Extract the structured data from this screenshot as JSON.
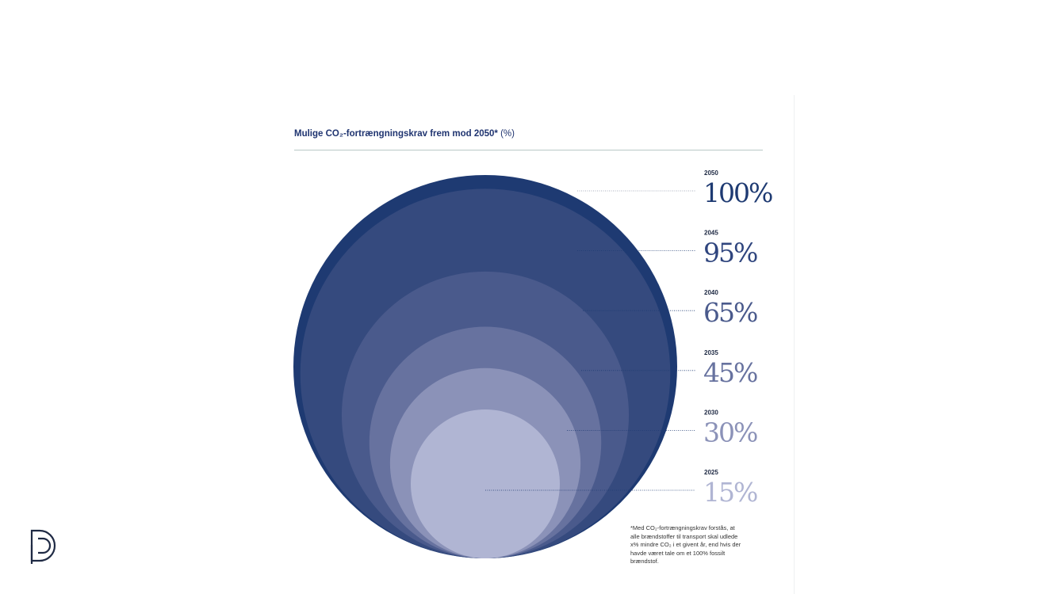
{
  "title": {
    "bold": "Mulige CO₂-fortrængningskrav frem mod 2050*",
    "normal": " (%)"
  },
  "footnote": "*Med CO₂-fortrængningskrav forstås, at\nalle brændstoffer til transport skal udlede\nx% mindre CO₂ i et givent år, end hvis der\nhavde været tale om et 100% fossilt\nbrændstof.",
  "chart_data": {
    "type": "nested-circle",
    "title": "Mulige CO₂-fortrængningskrav frem mod 2050* (%)",
    "unit": "%",
    "points": [
      {
        "year": "2050",
        "value": 100,
        "label": "100%",
        "color": "#1e3a72"
      },
      {
        "year": "2045",
        "value": 95,
        "label": "95%",
        "color": "#354a7e"
      },
      {
        "year": "2040",
        "value": 65,
        "label": "65%",
        "color": "#4a5a8c"
      },
      {
        "year": "2035",
        "value": 45,
        "label": "45%",
        "color": "#67729f"
      },
      {
        "year": "2030",
        "value": 30,
        "label": "30%",
        "color": "#8b92b8"
      },
      {
        "year": "2025",
        "value": 15,
        "label": "15%",
        "color": "#b0b5d3"
      }
    ]
  }
}
